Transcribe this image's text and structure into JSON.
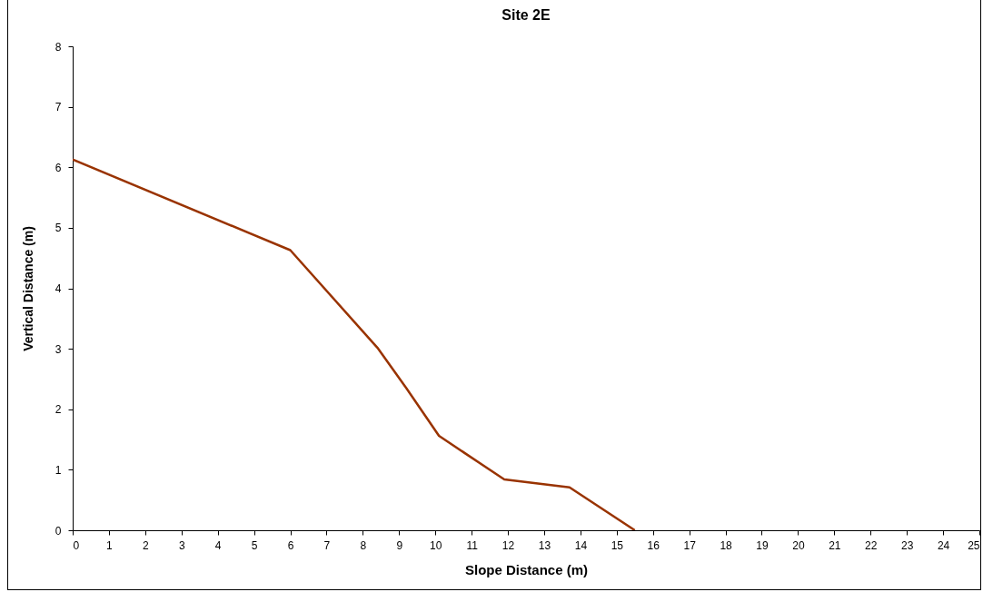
{
  "chart_data": {
    "type": "line",
    "title": "Site 2E",
    "xlabel": "Slope Distance (m)",
    "ylabel": "Vertical Distance (m)",
    "x": [
      0,
      6.0,
      8.4,
      9.2,
      10.1,
      11.9,
      13.7,
      15.5
    ],
    "series": [
      {
        "color": "#993300",
        "values": [
          6.13,
          4.63,
          3.02,
          2.35,
          1.56,
          0.84,
          0.71,
          0
        ]
      }
    ],
    "xlim": [
      0,
      25
    ],
    "xticks": [
      0,
      1,
      2,
      3,
      4,
      5,
      6,
      7,
      8,
      9,
      10,
      11,
      12,
      13,
      14,
      15,
      16,
      17,
      18,
      19,
      20,
      21,
      22,
      23,
      24,
      25
    ],
    "ylim": [
      0,
      8
    ],
    "yticks": [
      0,
      1,
      2,
      3,
      4,
      5,
      6,
      7,
      8
    ],
    "grid": false,
    "marker": "none",
    "line_style": "solid"
  }
}
